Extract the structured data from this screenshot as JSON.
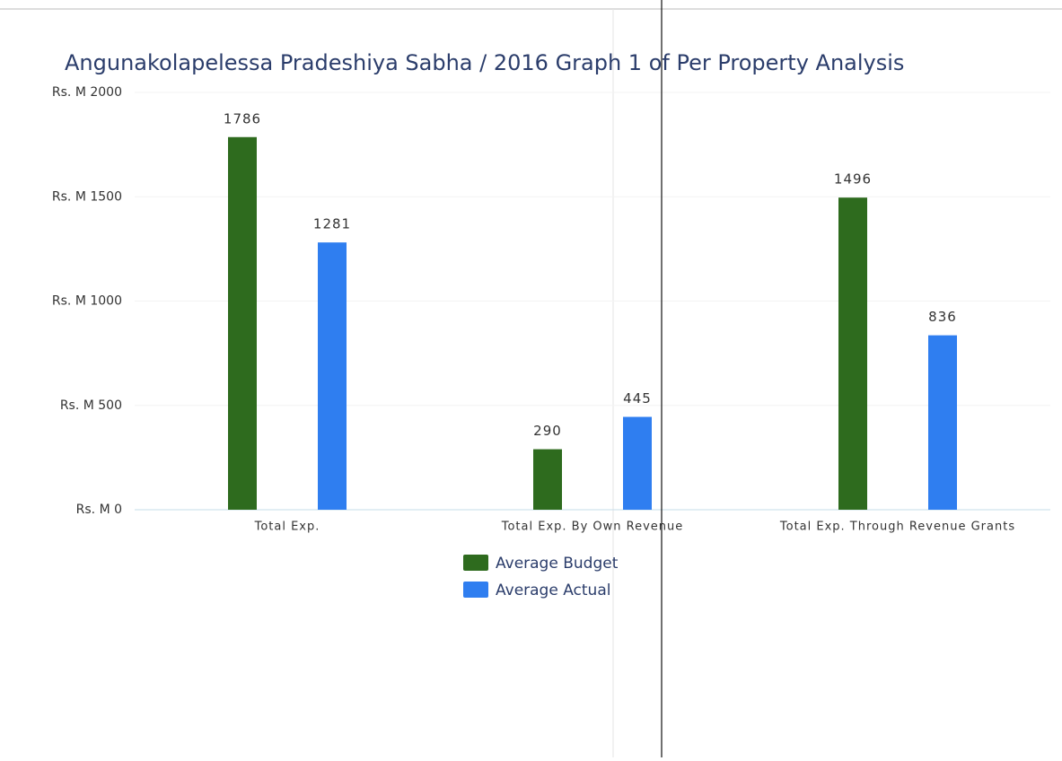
{
  "chart_data": {
    "type": "bar",
    "title": "Angunakolapelessa Pradeshiya Sabha / 2016 Graph 1 of Per Property Analysis",
    "categories": [
      "Total Exp.",
      "Total Exp. By Own Revenue",
      "Total Exp. Through Revenue Grants"
    ],
    "series": [
      {
        "name": "Average Budget",
        "color": "#2e6b1e",
        "values": [
          1786,
          290,
          1496
        ]
      },
      {
        "name": "Average Actual",
        "color": "#2f7ef0",
        "values": [
          1281,
          445,
          836
        ]
      }
    ],
    "ylim": [
      0,
      2000
    ],
    "yticks": [
      {
        "value": 0,
        "label": "Rs. M 0"
      },
      {
        "value": 500,
        "label": "Rs. M 500"
      },
      {
        "value": 1000,
        "label": "Rs. M 1000"
      },
      {
        "value": 1500,
        "label": "Rs. M 1500"
      },
      {
        "value": 2000,
        "label": "Rs. M 2000"
      }
    ],
    "grid": true
  }
}
